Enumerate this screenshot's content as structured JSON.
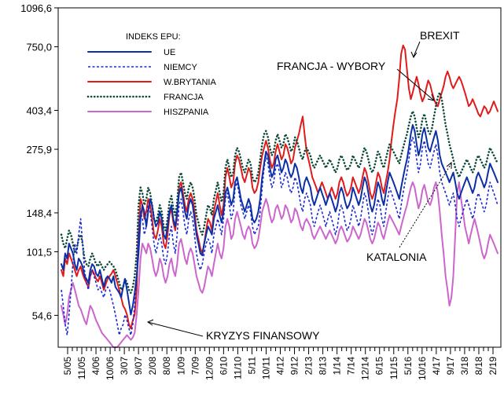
{
  "colors": {
    "UE": "#0b2fa6",
    "NIEMCY": "#1b2ad6",
    "W.BRYTANIA": "#e01b1b",
    "FRANCJA": "#0f4a3a",
    "HISZPANIA": "#cc66cc"
  },
  "chart_data": {
    "type": "line",
    "y_scale": "log",
    "ylim": [
      40,
      1096.6
    ],
    "yticks": [
      54.6,
      101.5,
      148.4,
      275.9,
      403.4,
      750.0,
      1096.6
    ],
    "ytick_labels": [
      "54,6",
      "101,5",
      "148,4",
      "275,9",
      "403,4",
      "750,0",
      "1096,6"
    ],
    "xticks": [
      "5/05",
      "11/05",
      "4/06",
      "10/06",
      "3/07",
      "9/07",
      "2/08",
      "8/08",
      "1/09",
      "7/09",
      "12/09",
      "6/10",
      "11/10",
      "5/11",
      "10/11",
      "4/12",
      "9/12",
      "2/13",
      "8/13",
      "1/14",
      "7/14",
      "12/14",
      "6/15",
      "11/15",
      "5/16",
      "10/16",
      "4/17",
      "9/17",
      "3/18",
      "8/18",
      "2/19"
    ],
    "legend": {
      "title": "INDEKS EPU:",
      "position": "top-left",
      "entries": [
        "UE",
        "NIEMCY",
        "W.BRYTANIA",
        "FRANCJA",
        "HISZPANIA"
      ]
    },
    "annotations": [
      {
        "text": "BREXIT",
        "points_to": "5/16"
      },
      {
        "text": "FRANCJA - WYBORY",
        "points_to": "4/17"
      },
      {
        "text": "KATALONIA",
        "points_to": "10/17"
      },
      {
        "text": "KRYZYS FINANSOWY",
        "points_to": "9/07"
      }
    ],
    "x_start": "2005-01",
    "series": [
      {
        "name": "UE",
        "style": "solid",
        "values": [
          90,
          85,
          100,
          95,
          110,
          105,
          100,
          90,
          85,
          95,
          92,
          88,
          80,
          78,
          75,
          85,
          90,
          88,
          82,
          80,
          85,
          78,
          72,
          78,
          80,
          78,
          75,
          80,
          72,
          70,
          68,
          65,
          72,
          78,
          70,
          62,
          55,
          60,
          68,
          80,
          100,
          140,
          160,
          150,
          130,
          150,
          170,
          160,
          140,
          130,
          135,
          150,
          140,
          120,
          115,
          130,
          150,
          160,
          140,
          130,
          150,
          180,
          190,
          170,
          150,
          140,
          160,
          170,
          160,
          140,
          120,
          110,
          100,
          98,
          110,
          120,
          130,
          125,
          120,
          140,
          150,
          160,
          145,
          135,
          150,
          180,
          190,
          175,
          160,
          170,
          200,
          210,
          190,
          170,
          160,
          150,
          160,
          170,
          160,
          140,
          135,
          140,
          150,
          170,
          210,
          240,
          270,
          260,
          230,
          210,
          220,
          250,
          260,
          240,
          220,
          230,
          250,
          240,
          220,
          210,
          220,
          240,
          230,
          210,
          190,
          180,
          200,
          210,
          200,
          190,
          170,
          160,
          170,
          180,
          190,
          180,
          170,
          160,
          170,
          180,
          170,
          160,
          150,
          160,
          180,
          190,
          180,
          165,
          155,
          160,
          170,
          190,
          180,
          170,
          160,
          170,
          190,
          210,
          200,
          180,
          160,
          150,
          160,
          180,
          200,
          190,
          170,
          160,
          180,
          200,
          220,
          210,
          200,
          190,
          180,
          170,
          190,
          210,
          230,
          250,
          280,
          320,
          350,
          330,
          290,
          260,
          280,
          320,
          340,
          310,
          280,
          270,
          290,
          310,
          330,
          300,
          260,
          240,
          230,
          220,
          210,
          200,
          210,
          220,
          200,
          180,
          170,
          180,
          190,
          200,
          210,
          200,
          190,
          180,
          190,
          210,
          220,
          210,
          200,
          190,
          200,
          220,
          240,
          230,
          220,
          210,
          200
        ]
      },
      {
        "name": "NIEMCY",
        "style": "dashed",
        "values": [
          70,
          60,
          50,
          45,
          55,
          70,
          90,
          110,
          100,
          120,
          140,
          110,
          85,
          75,
          70,
          80,
          85,
          80,
          75,
          70,
          72,
          68,
          65,
          70,
          72,
          70,
          65,
          60,
          55,
          50,
          45,
          48,
          50,
          55,
          52,
          48,
          45,
          50,
          60,
          80,
          130,
          150,
          140,
          120,
          130,
          160,
          150,
          130,
          110,
          100,
          110,
          120,
          110,
          95,
          90,
          100,
          120,
          130,
          110,
          100,
          120,
          160,
          170,
          150,
          130,
          120,
          140,
          150,
          140,
          120,
          100,
          90,
          85,
          90,
          100,
          110,
          115,
          110,
          100,
          120,
          130,
          140,
          130,
          120,
          140,
          170,
          180,
          160,
          140,
          150,
          190,
          200,
          180,
          160,
          150,
          140,
          150,
          160,
          150,
          130,
          120,
          125,
          130,
          150,
          190,
          230,
          260,
          240,
          210,
          190,
          200,
          230,
          240,
          220,
          190,
          200,
          220,
          210,
          190,
          180,
          190,
          210,
          200,
          180,
          160,
          150,
          170,
          180,
          170,
          160,
          140,
          130,
          140,
          150,
          160,
          150,
          140,
          130,
          140,
          150,
          140,
          130,
          120,
          130,
          150,
          160,
          150,
          135,
          125,
          130,
          140,
          160,
          150,
          140,
          130,
          140,
          160,
          180,
          170,
          150,
          130,
          120,
          130,
          150,
          170,
          160,
          140,
          130,
          150,
          170,
          190,
          180,
          170,
          160,
          150,
          140,
          160,
          180,
          200,
          220,
          250,
          290,
          310,
          290,
          250,
          220,
          240,
          280,
          300,
          270,
          240,
          230,
          250,
          270,
          290,
          260,
          220,
          200,
          190,
          180,
          170,
          160,
          170,
          180,
          160,
          140,
          130,
          140,
          150,
          160,
          170,
          160,
          150,
          140,
          150,
          170,
          180,
          170,
          160,
          150,
          160,
          180,
          200,
          190,
          180,
          170,
          160
        ]
      },
      {
        "name": "W.BRYTANIA",
        "style": "solid",
        "values": [
          85,
          80,
          95,
          90,
          100,
          95,
          90,
          85,
          80,
          85,
          88,
          82,
          78,
          75,
          72,
          80,
          85,
          82,
          78,
          76,
          80,
          75,
          70,
          74,
          78,
          80,
          82,
          85,
          80,
          75,
          70,
          65,
          60,
          58,
          55,
          50,
          48,
          52,
          55,
          70,
          120,
          170,
          160,
          140,
          150,
          170,
          160,
          140,
          120,
          115,
          125,
          140,
          130,
          110,
          105,
          120,
          145,
          155,
          135,
          125,
          145,
          190,
          200,
          180,
          160,
          150,
          170,
          180,
          170,
          150,
          125,
          115,
          105,
          100,
          110,
          125,
          140,
          135,
          125,
          150,
          165,
          180,
          160,
          145,
          160,
          210,
          230,
          210,
          190,
          200,
          240,
          260,
          250,
          230,
          210,
          200,
          215,
          230,
          220,
          190,
          180,
          185,
          200,
          230,
          260,
          280,
          300,
          280,
          250,
          230,
          240,
          270,
          290,
          270,
          250,
          260,
          290,
          280,
          260,
          240,
          250,
          280,
          300,
          320,
          350,
          380,
          320,
          270,
          250,
          230,
          210,
          200,
          190,
          180,
          190,
          200,
          190,
          180,
          170,
          180,
          190,
          180,
          170,
          180,
          200,
          210,
          200,
          185,
          175,
          180,
          190,
          210,
          200,
          190,
          180,
          190,
          210,
          230,
          220,
          200,
          180,
          170,
          180,
          200,
          220,
          210,
          190,
          180,
          200,
          220,
          250,
          300,
          350,
          400,
          450,
          550,
          700,
          760,
          730,
          600,
          500,
          450,
          480,
          520,
          560,
          520,
          470,
          440,
          460,
          500,
          540,
          520,
          480,
          450,
          430,
          420,
          450,
          480,
          510,
          560,
          590,
          560,
          520,
          500,
          520,
          540,
          560,
          540,
          510,
          480,
          450,
          420,
          430,
          450,
          430,
          410,
          390,
          380,
          400,
          420,
          410,
          390,
          400,
          420,
          440,
          420,
          400
        ]
      },
      {
        "name": "FRANCJA",
        "style": "dotted",
        "values": [
          120,
          110,
          105,
          115,
          125,
          120,
          110,
          100,
          105,
          115,
          120,
          110,
          95,
          90,
          88,
          95,
          100,
          95,
          90,
          88,
          92,
          88,
          85,
          88,
          90,
          92,
          90,
          88,
          85,
          80,
          75,
          70,
          72,
          78,
          75,
          70,
          68,
          72,
          80,
          100,
          160,
          190,
          180,
          160,
          170,
          190,
          180,
          160,
          140,
          135,
          145,
          160,
          150,
          130,
          125,
          140,
          165,
          175,
          155,
          145,
          165,
          210,
          220,
          200,
          180,
          170,
          190,
          200,
          190,
          170,
          145,
          135,
          125,
          120,
          130,
          145,
          160,
          155,
          145,
          170,
          185,
          200,
          180,
          165,
          180,
          230,
          250,
          230,
          210,
          220,
          260,
          280,
          270,
          250,
          230,
          220,
          235,
          250,
          240,
          210,
          200,
          205,
          220,
          250,
          290,
          320,
          330,
          310,
          280,
          260,
          270,
          300,
          320,
          300,
          280,
          290,
          320,
          310,
          290,
          270,
          280,
          310,
          300,
          280,
          260,
          250,
          270,
          280,
          270,
          260,
          240,
          230,
          240,
          250,
          260,
          250,
          240,
          230,
          240,
          250,
          240,
          230,
          220,
          230,
          250,
          260,
          250,
          235,
          225,
          230,
          240,
          260,
          250,
          240,
          230,
          240,
          260,
          280,
          270,
          250,
          230,
          220,
          230,
          250,
          270,
          260,
          240,
          230,
          250,
          270,
          290,
          280,
          270,
          260,
          250,
          240,
          260,
          280,
          300,
          320,
          350,
          380,
          400,
          380,
          340,
          310,
          330,
          370,
          390,
          360,
          330,
          320,
          340,
          380,
          420,
          460,
          480,
          450,
          400,
          350,
          320,
          290,
          270,
          250,
          230,
          220,
          210,
          220,
          230,
          240,
          250,
          240,
          230,
          220,
          230,
          250,
          260,
          250,
          240,
          230,
          240,
          260,
          280,
          270,
          260,
          250,
          240
        ]
      },
      {
        "name": "HISZPANIA",
        "style": "solid",
        "values": [
          60,
          55,
          50,
          55,
          65,
          70,
          75,
          70,
          65,
          60,
          58,
          55,
          52,
          50,
          55,
          60,
          58,
          55,
          52,
          50,
          48,
          46,
          45,
          44,
          43,
          42,
          41,
          40,
          40,
          40,
          41,
          42,
          43,
          44,
          45,
          44,
          43,
          44,
          46,
          55,
          70,
          95,
          110,
          105,
          100,
          110,
          105,
          95,
          85,
          80,
          85,
          95,
          90,
          80,
          75,
          80,
          90,
          95,
          85,
          80,
          90,
          110,
          115,
          105,
          95,
          90,
          100,
          105,
          100,
          90,
          80,
          75,
          70,
          68,
          72,
          80,
          88,
          85,
          80,
          90,
          100,
          110,
          100,
          95,
          105,
          130,
          140,
          130,
          115,
          120,
          140,
          150,
          140,
          130,
          120,
          115,
          125,
          130,
          125,
          110,
          105,
          108,
          115,
          130,
          150,
          160,
          170,
          160,
          145,
          135,
          140,
          155,
          160,
          150,
          140,
          145,
          160,
          155,
          145,
          135,
          140,
          155,
          150,
          140,
          130,
          125,
          135,
          140,
          135,
          130,
          120,
          115,
          120,
          125,
          130,
          125,
          120,
          115,
          120,
          125,
          120,
          115,
          110,
          115,
          125,
          130,
          125,
          118,
          112,
          115,
          120,
          130,
          125,
          120,
          115,
          120,
          130,
          140,
          135,
          125,
          115,
          110,
          115,
          125,
          135,
          130,
          120,
          115,
          125,
          135,
          145,
          140,
          135,
          130,
          125,
          120,
          130,
          140,
          150,
          160,
          175,
          190,
          200,
          190,
          170,
          155,
          165,
          185,
          195,
          180,
          165,
          160,
          170,
          190,
          200,
          180,
          150,
          120,
          100,
          80,
          70,
          60,
          65,
          80,
          120,
          180,
          200,
          170,
          150,
          130,
          120,
          110,
          120,
          130,
          140,
          130,
          120,
          110,
          100,
          95,
          100,
          110,
          120,
          115,
          110,
          105,
          100
        ]
      }
    ]
  }
}
